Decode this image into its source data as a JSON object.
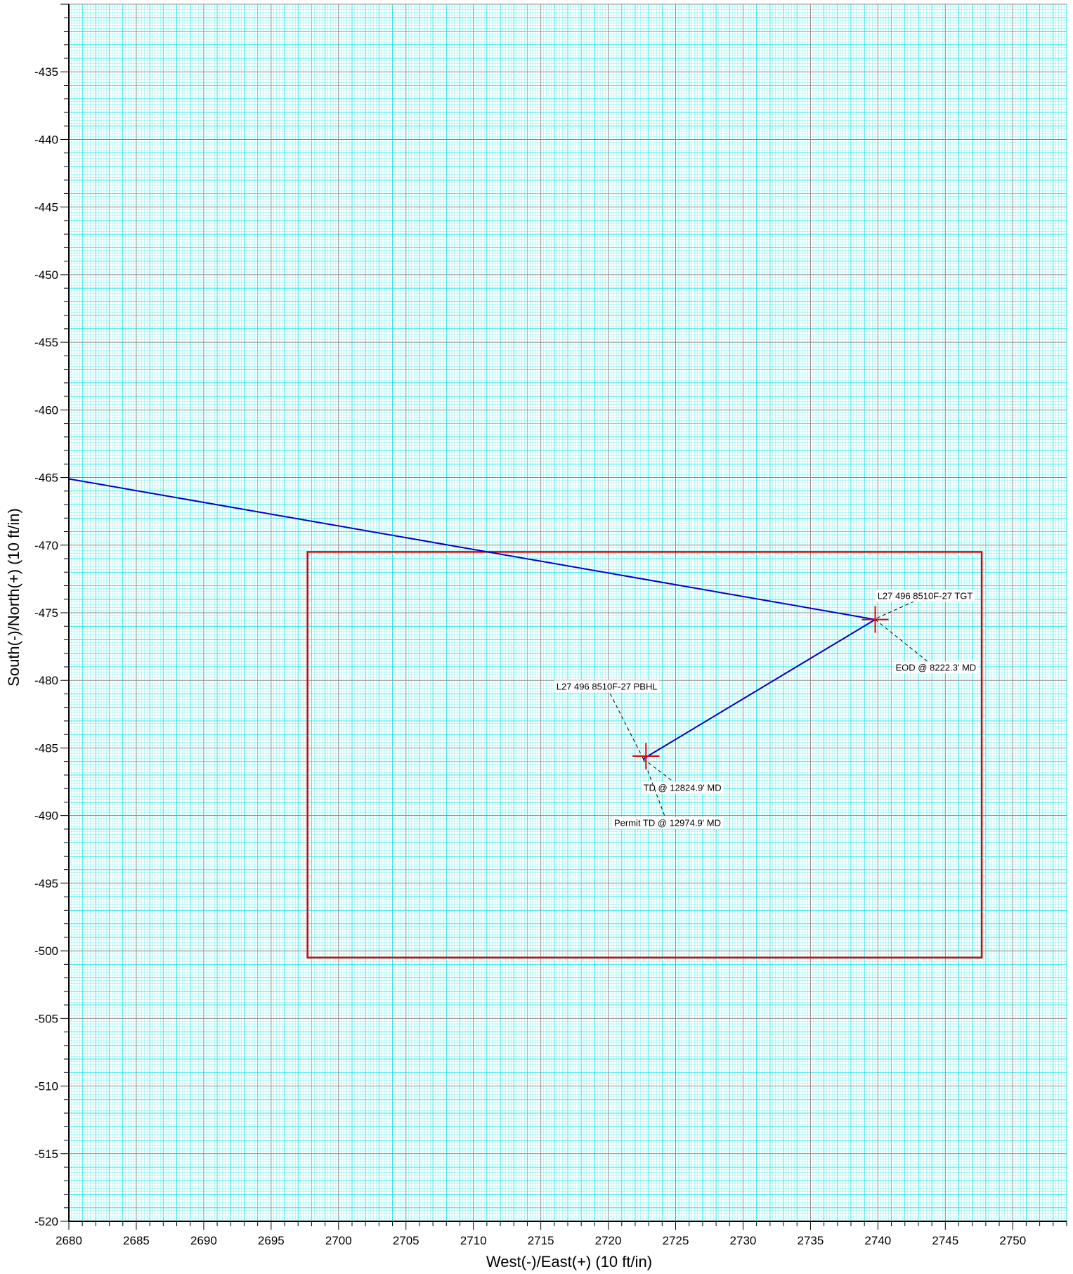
{
  "chart_data": {
    "type": "line",
    "title": "",
    "xlabel": "West(-)/East(+) (10 ft/in)",
    "ylabel": "South(-)/North(+) (10 ft/in)",
    "xlim": [
      2680,
      2754
    ],
    "ylim": [
      -520,
      -430
    ],
    "x_major_step": 5,
    "y_major_step": 5,
    "minor_step": 1,
    "grid": true,
    "grid_colors": {
      "major": "#8c8c8c",
      "minor": "#00e6e6"
    },
    "x_ticks": [
      2680,
      2685,
      2690,
      2695,
      2700,
      2705,
      2710,
      2715,
      2720,
      2725,
      2730,
      2735,
      2740,
      2745,
      2750
    ],
    "y_ticks": [
      -435,
      -440,
      -445,
      -450,
      -455,
      -460,
      -465,
      -470,
      -475,
      -480,
      -485,
      -490,
      -495,
      -500,
      -505,
      -510,
      -515,
      -520
    ],
    "series": [
      {
        "color": "#0000cc",
        "x": [
          2680.0,
          2739.8,
          2722.6
        ],
        "y": [
          -465.1,
          -475.5,
          -485.8
        ]
      }
    ],
    "boundary": {
      "color": "#e60000",
      "x_range": [
        2697.7,
        2747.7
      ],
      "y_range": [
        -500.5,
        -470.5
      ]
    },
    "targets": [
      {
        "x": 2739.8,
        "y": -475.5,
        "color": "#e60000"
      },
      {
        "x": 2722.8,
        "y": -485.6,
        "color": "#e60000"
      }
    ],
    "annotations": [
      {
        "text": "L27 496 8510F-27 TGT",
        "x": 2743.5,
        "y": -473.8,
        "anchor_x": 2739.9,
        "anchor_y": -475.4
      },
      {
        "text": "EOD @ 8222.3' MD",
        "x": 2744.3,
        "y": -479.1,
        "anchor_x": 2739.8,
        "anchor_y": -475.5
      },
      {
        "text": "L27 496 8510F-27 PBHL",
        "x": 2719.9,
        "y": -480.5,
        "anchor_x": 2722.6,
        "anchor_y": -485.8
      },
      {
        "text": "TD @ 12824.9' MD",
        "x": 2725.5,
        "y": -488.0,
        "anchor_x": 2722.6,
        "anchor_y": -485.8
      },
      {
        "text": "Permit TD @ 12974.9' MD",
        "x": 2724.4,
        "y": -490.6,
        "anchor_x": 2722.6,
        "anchor_y": -485.8
      }
    ]
  }
}
